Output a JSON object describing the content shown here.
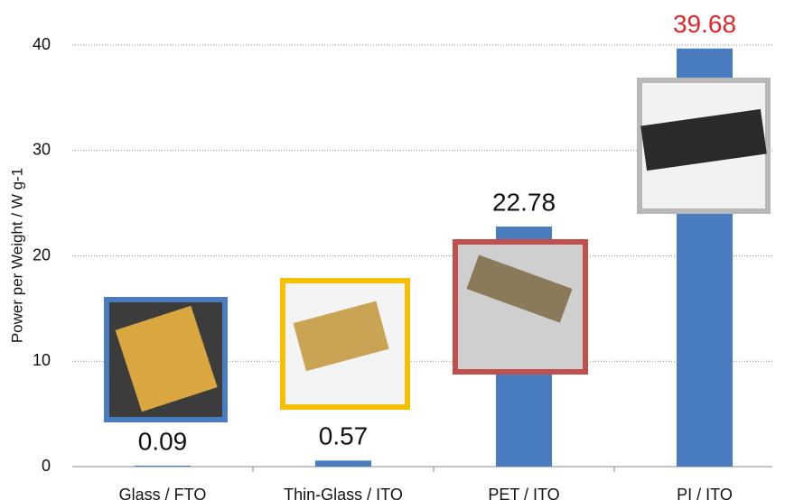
{
  "chart_data": {
    "type": "bar",
    "y_label": "Power per Weight /  W g-1",
    "categories": [
      "Glass / FTO",
      "Thin-Glass / ITO",
      "PET / ITO",
      "PI / ITO"
    ],
    "values": [
      0.09,
      0.57,
      22.78,
      39.68
    ],
    "color": "#4a7cc0",
    "value_label_colors": [
      "#111111",
      "#111111",
      "#111111",
      "#e3262a"
    ],
    "ylim": [
      0,
      40
    ],
    "yticks": [
      0,
      10,
      20,
      30,
      40
    ],
    "grid": true
  }
}
